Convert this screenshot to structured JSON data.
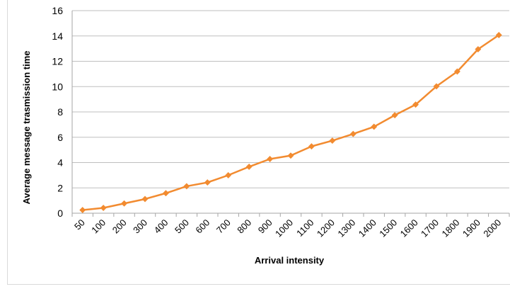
{
  "chart_data": {
    "type": "line",
    "title": "",
    "xlabel": "Arrival intensity",
    "ylabel": "Average message trasmission time",
    "ylim": [
      0,
      16
    ],
    "yticks": [
      0,
      2,
      4,
      6,
      8,
      10,
      12,
      14,
      16
    ],
    "grid": true,
    "legend": "none",
    "colors": {
      "line": "#f28b30",
      "grid": "#bfbfbf",
      "axis": "#a6a6a6"
    },
    "categories": [
      "50",
      "100",
      "200",
      "300",
      "400",
      "500",
      "600",
      "700",
      "800",
      "900",
      "1000",
      "1100",
      "1200",
      "1300",
      "1400",
      "1500",
      "1600",
      "1700",
      "1800",
      "1900",
      "2000"
    ],
    "series": [
      {
        "values": [
          0.25,
          0.42,
          0.77,
          1.12,
          1.58,
          2.13,
          2.43,
          3.0,
          3.67,
          4.28,
          4.55,
          5.28,
          5.73,
          6.26,
          6.83,
          7.74,
          8.58,
          10.02,
          11.19,
          12.95,
          14.07
        ]
      }
    ]
  }
}
